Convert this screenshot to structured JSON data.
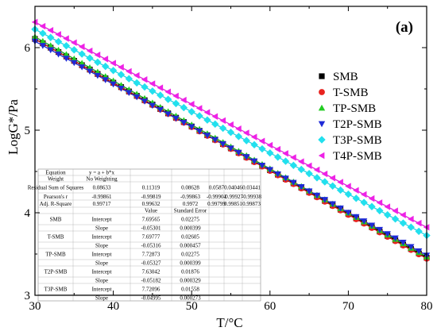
{
  "chart_data": {
    "type": "scatter",
    "panel_label": "(a)",
    "xlabel": "T/°C",
    "ylabel": "LogG*/Pa",
    "xlim": [
      30,
      80
    ],
    "ylim": [
      3,
      6.5
    ],
    "xticks": [
      30,
      40,
      50,
      60,
      70,
      80
    ],
    "yticks": [
      3,
      4,
      5,
      6
    ],
    "legend_position": "right",
    "x": [
      30,
      31,
      32,
      33,
      34,
      35,
      36,
      37,
      38,
      39,
      40,
      41,
      42,
      43,
      44,
      45,
      46,
      47,
      48,
      49,
      50,
      51,
      52,
      53,
      54,
      55,
      56,
      57,
      58,
      59,
      60,
      61,
      62,
      63,
      64,
      65,
      66,
      67,
      68,
      69,
      70,
      71,
      72,
      73,
      74,
      75,
      76,
      77,
      78,
      79,
      80
    ],
    "series": [
      {
        "name": "SMB",
        "marker": "square",
        "color": "#000000",
        "line_color": "#000000",
        "intercept": 7.69565,
        "slope": -0.05301
      },
      {
        "name": "T-SMB",
        "marker": "circle",
        "color": "#e8231f",
        "line_color": "#d81e1e",
        "intercept": 7.69777,
        "slope": -0.05316
      },
      {
        "name": "TP-SMB",
        "marker": "triangle-up",
        "color": "#22cc22",
        "line_color": "#1aa51a",
        "intercept": 7.72873,
        "slope": -0.05327
      },
      {
        "name": "T2P-SMB",
        "marker": "triangle-down",
        "color": "#1f2ad6",
        "line_color": "#1f2ad6",
        "intercept": 7.63042,
        "slope": -0.05182
      },
      {
        "name": "T3P-SMB",
        "marker": "diamond",
        "color": "#22e0ee",
        "line_color": "#22d4e2",
        "intercept": 7.72096,
        "slope": -0.04995
      },
      {
        "name": "T4P-SMB",
        "marker": "triangle-left",
        "color": "#ee22e6",
        "line_color": "#e020d8",
        "intercept": 7.8,
        "slope": -0.0497
      }
    ],
    "fit_table": {
      "rows": [
        [
          "Equation",
          "y = a + b*x",
          "",
          "",
          "",
          "",
          ""
        ],
        [
          "Weight",
          "No Weighting",
          "",
          "",
          "",
          "",
          ""
        ],
        [
          "Residual Sum of Squares",
          "0.08633",
          "0.11319",
          "0.08628",
          "0.0587",
          "0.04046",
          "0.03441"
        ],
        [
          "Pearson's r",
          "-0.99861",
          "-0.99819",
          "-0.99863",
          "-0.99901",
          "-0.99927",
          "-0.99938"
        ],
        [
          "Adj. R-Square",
          "0.99717",
          "0.99632",
          "0.9972",
          "0.99799",
          "0.99851",
          "0.99873"
        ],
        [
          "",
          "",
          "Value",
          "Standard Error",
          "",
          "",
          ""
        ],
        [
          "SMB",
          "Intercept",
          "7.69565",
          "0.02275",
          "",
          "",
          ""
        ],
        [
          "",
          "Slope",
          "-0.05301",
          "0.000399",
          "",
          "",
          ""
        ],
        [
          "T-SMB",
          "Intercept",
          "7.69777",
          "0.02605",
          "",
          "",
          ""
        ],
        [
          "",
          "Slope",
          "-0.05316",
          "0.000457",
          "",
          "",
          ""
        ],
        [
          "TP-SMB",
          "Intercept",
          "7.72873",
          "0.02275",
          "",
          "",
          ""
        ],
        [
          "",
          "Slope",
          "-0.05327",
          "0.000399",
          "",
          "",
          ""
        ],
        [
          "T2P-SMB",
          "Intercept",
          "7.63042",
          "0.01876",
          "",
          "",
          ""
        ],
        [
          "",
          "Slope",
          "-0.05182",
          "0.000329",
          "",
          "",
          ""
        ],
        [
          "T3P-SMB",
          "Intercept",
          "7.72096",
          "0.01558",
          "",
          "",
          ""
        ],
        [
          "",
          "Slope",
          "-0.04995",
          "0.000273",
          "",
          "",
          ""
        ]
      ]
    }
  }
}
